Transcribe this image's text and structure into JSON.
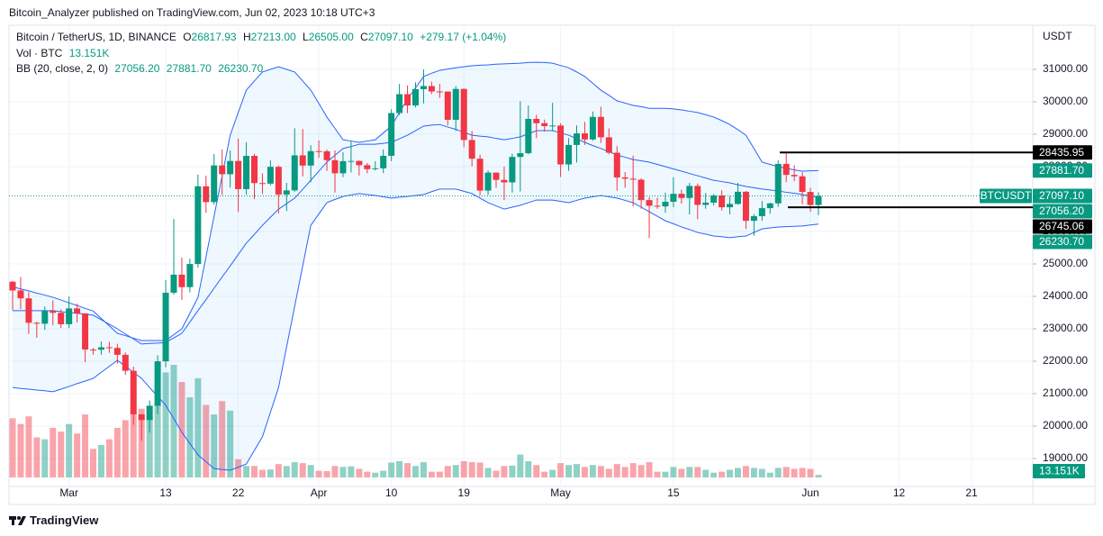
{
  "header": {
    "byline": "Bitcoin_Analyzer published on TradingView.com, Jun 02, 2023 10:18 UTC+3"
  },
  "legend": {
    "symbol": "Bitcoin / TetherUS, 1D, BINANCE",
    "ohlc": [
      {
        "key": "O",
        "value": "26817.93"
      },
      {
        "key": "H",
        "value": "27213.00"
      },
      {
        "key": "L",
        "value": "26505.00"
      },
      {
        "key": "C",
        "value": "27097.10"
      }
    ],
    "change": "+279.17 (+1.04%)",
    "volume": {
      "label": "Vol · BTC",
      "value": "13.151K"
    },
    "bb": {
      "label": "BB (20, close, 2, 0)",
      "values": [
        "27056.20",
        "27881.70",
        "26230.70"
      ]
    }
  },
  "branding": "TradingView",
  "chart_data": {
    "type": "candlestick",
    "price_unit": "USDT",
    "up_color": "#089981",
    "down_color": "#f23645",
    "volume_up_color": "rgba(8,153,129,0.45)",
    "volume_down_color": "rgba(242,54,69,0.45)",
    "grid": true,
    "ylim": [
      18139,
      32361
    ],
    "yticks": [
      {
        "value": 19000,
        "label": "19000.00"
      },
      {
        "value": 20000,
        "label": "20000.00"
      },
      {
        "value": 21000,
        "label": "21000.00"
      },
      {
        "value": 22000,
        "label": "22000.00"
      },
      {
        "value": 23000,
        "label": "23000.00"
      },
      {
        "value": 24000,
        "label": "24000.00"
      },
      {
        "value": 25000,
        "label": "25000.00"
      },
      {
        "value": 26000,
        "label": "26000.00"
      },
      {
        "value": 27000,
        "label": "27000.00"
      },
      {
        "value": 28000,
        "label": "28000.00"
      },
      {
        "value": 29000,
        "label": "29000.00"
      },
      {
        "value": 30000,
        "label": "30000.00"
      },
      {
        "value": 31000,
        "label": "31000.00"
      }
    ],
    "xticks": [
      {
        "value": "03-01",
        "label": "Mar"
      },
      {
        "value": "03-13",
        "label": "13"
      },
      {
        "value": "03-22",
        "label": "22"
      },
      {
        "value": "04-01",
        "label": "Apr"
      },
      {
        "value": "04-10",
        "label": "10"
      },
      {
        "value": "04-19",
        "label": "19"
      },
      {
        "value": "05-01",
        "label": "May"
      },
      {
        "value": "05-15",
        "label": "15"
      },
      {
        "value": "06-01",
        "label": "Jun"
      },
      {
        "value": "06-12",
        "label": "12"
      },
      {
        "value": "06-21",
        "label": "21"
      }
    ],
    "x": [
      "02-22",
      "02-23",
      "02-24",
      "02-25",
      "02-26",
      "02-27",
      "02-28",
      "03-01",
      "03-02",
      "03-03",
      "03-04",
      "03-05",
      "03-06",
      "03-07",
      "03-08",
      "03-09",
      "03-10",
      "03-11",
      "03-12",
      "03-13",
      "03-14",
      "03-15",
      "03-16",
      "03-17",
      "03-18",
      "03-19",
      "03-20",
      "03-21",
      "03-22",
      "03-23",
      "03-24",
      "03-25",
      "03-26",
      "03-27",
      "03-28",
      "03-29",
      "03-30",
      "03-31",
      "04-01",
      "04-02",
      "04-03",
      "04-04",
      "04-05",
      "04-06",
      "04-07",
      "04-08",
      "04-09",
      "04-10",
      "04-11",
      "04-12",
      "04-13",
      "04-14",
      "04-15",
      "04-16",
      "04-17",
      "04-18",
      "04-19",
      "04-20",
      "04-21",
      "04-22",
      "04-23",
      "04-24",
      "04-25",
      "04-26",
      "04-27",
      "04-28",
      "04-29",
      "04-30",
      "05-01",
      "05-02",
      "05-03",
      "05-04",
      "05-05",
      "05-06",
      "05-07",
      "05-08",
      "05-09",
      "05-10",
      "05-11",
      "05-12",
      "05-13",
      "05-14",
      "05-15",
      "05-16",
      "05-17",
      "05-18",
      "05-19",
      "05-20",
      "05-21",
      "05-22",
      "05-23",
      "05-24",
      "05-25",
      "05-26",
      "05-27",
      "05-28",
      "05-29",
      "05-30",
      "05-31",
      "06-01",
      "06-02"
    ],
    "open": [
      24452,
      24182,
      23940,
      23185,
      23157,
      23554,
      23493,
      23142,
      23629,
      23476,
      22362,
      22354,
      22430,
      22410,
      22198,
      21705,
      20362,
      20187,
      20628,
      21998,
      24113,
      24670,
      24285,
      24998,
      27395,
      26907,
      28038,
      27767,
      28175,
      27307,
      28333,
      27493,
      27477,
      27994,
      27140,
      27268,
      28348,
      28034,
      28479,
      28473,
      28200,
      27795,
      28169,
      28176,
      28045,
      27923,
      27948,
      28334,
      29653,
      30235,
      29887,
      30390,
      30485,
      30318,
      30315,
      29445,
      30397,
      28822,
      28245,
      27262,
      27816,
      27591,
      27515,
      28300,
      28415,
      29473,
      29340,
      29248,
      29268,
      28068,
      28669,
      29026,
      28839,
      29535,
      28905,
      28430,
      27668,
      27629,
      27599,
      26969,
      26795,
      26775,
      26917,
      27163,
      27034,
      27405,
      26822,
      26890,
      27112,
      26748,
      26850,
      27226,
      26330,
      26474,
      26720,
      26868,
      28085,
      27746,
      27702,
      27220,
      26817.93
    ],
    "high": [
      24476,
      24599,
      24132,
      23219,
      23689,
      23880,
      23600,
      23999,
      23775,
      23479,
      22410,
      22611,
      22603,
      22538,
      22270,
      21834,
      20367,
      20792,
      22185,
      24500,
      26386,
      25196,
      25167,
      27756,
      27724,
      28390,
      28528,
      28500,
      28868,
      28754,
      28399,
      27791,
      28194,
      28037,
      27500,
      29184,
      29159,
      28660,
      28810,
      28529,
      28500,
      28444,
      28776,
      28190,
      28111,
      28170,
      28530,
      29770,
      30550,
      30500,
      30600,
      31000,
      30620,
      30550,
      30320,
      30485,
      30410,
      29100,
      28370,
      27882,
      27820,
      28000,
      28400,
      30020,
      29890,
      29600,
      29450,
      29968,
      29338,
      28880,
      29270,
      29380,
      29700,
      29850,
      29180,
      28630,
      27830,
      28340,
      27640,
      27060,
      27040,
      27200,
      27670,
      27290,
      27500,
      27480,
      27190,
      27160,
      27270,
      27090,
      27500,
      27250,
      26540,
      26940,
      26890,
      28200,
      28447,
      28045,
      27835,
      27350,
      27213
    ],
    "low": [
      23574,
      23608,
      22841,
      22722,
      22965,
      23106,
      23020,
      23021,
      23195,
      21971,
      22200,
      22200,
      22258,
      21927,
      21580,
      20043,
      19549,
      19800,
      20367,
      21813,
      24050,
      23896,
      24123,
      24890,
      26578,
      26827,
      27124,
      27352,
      26601,
      27136,
      27000,
      27162,
      27426,
      26555,
      26631,
      27227,
      27701,
      27520,
      28270,
      27871,
      27200,
      27676,
      27822,
      27728,
      27795,
      27884,
      27800,
      28170,
      29590,
      29650,
      29830,
      29950,
      30240,
      30120,
      29270,
      29100,
      28600,
      28010,
      27125,
      27130,
      27350,
      26970,
      27200,
      27235,
      28380,
      28880,
      29080,
      29090,
      27680,
      27870,
      28130,
      28670,
      28800,
      28730,
      28380,
      27260,
      27350,
      26780,
      26700,
      25800,
      26700,
      26580,
      26750,
      26860,
      26530,
      26380,
      26700,
      26800,
      26650,
      26530,
      26830,
      26080,
      25870,
      26330,
      26550,
      26760,
      27520,
      27550,
      26840,
      26604,
      26505
    ],
    "close": [
      24182,
      23940,
      23185,
      23157,
      23554,
      23493,
      23142,
      23629,
      23476,
      22362,
      22354,
      22430,
      22410,
      22198,
      21705,
      20362,
      20187,
      20628,
      21998,
      24113,
      24670,
      24285,
      24998,
      27395,
      26907,
      28038,
      27767,
      28175,
      27307,
      28333,
      27493,
      27477,
      27994,
      27140,
      27268,
      28348,
      28034,
      28479,
      28473,
      28200,
      27795,
      28169,
      28176,
      28045,
      27923,
      27948,
      28334,
      29653,
      30235,
      29887,
      30390,
      30485,
      30318,
      30315,
      29445,
      30397,
      28822,
      28245,
      27262,
      27816,
      27591,
      27515,
      28300,
      28415,
      29473,
      29340,
      29248,
      29268,
      28068,
      28669,
      29026,
      28839,
      29535,
      28905,
      28430,
      27668,
      27629,
      27599,
      26969,
      26795,
      26775,
      26917,
      27163,
      27034,
      27405,
      26822,
      26890,
      27112,
      26748,
      26850,
      27226,
      26330,
      26474,
      26720,
      26868,
      28085,
      27746,
      27702,
      27220,
      26817.93,
      27097.1
    ],
    "volume": [
      310000,
      280000,
      320000,
      210000,
      200000,
      260000,
      240000,
      280000,
      230000,
      330000,
      150000,
      170000,
      200000,
      260000,
      300000,
      330000,
      360000,
      320000,
      380000,
      550000,
      590000,
      500000,
      420000,
      520000,
      380000,
      330000,
      400000,
      350000,
      95000,
      60000,
      60000,
      40000,
      42000,
      70000,
      60000,
      80000,
      75000,
      65000,
      35000,
      33000,
      60000,
      55000,
      58000,
      45000,
      30000,
      25000,
      35000,
      78000,
      85000,
      75000,
      60000,
      80000,
      30000,
      30000,
      60000,
      65000,
      85000,
      80000,
      78000,
      50000,
      35000,
      60000,
      62000,
      120000,
      85000,
      65000,
      30000,
      40000,
      75000,
      65000,
      70000,
      55000,
      65000,
      60000,
      45000,
      70000,
      55000,
      75000,
      65000,
      80000,
      30000,
      30000,
      55000,
      45000,
      55000,
      55000,
      40000,
      25000,
      30000,
      40000,
      50000,
      60000,
      50000,
      45000,
      25000,
      50000,
      55000,
      45000,
      50000,
      45000,
      13151
    ],
    "bollinger": {
      "color": "#2962ff",
      "fill": "rgba(33,150,243,0.07)",
      "upper": [
        24300,
        24230,
        24170,
        24100,
        24040,
        23970,
        23890,
        23800,
        23720,
        23630,
        23550,
        23320,
        23090,
        22860,
        22790,
        22710,
        22640,
        22640,
        22640,
        22640,
        22820,
        23000,
        23480,
        23970,
        25220,
        26470,
        27720,
        28970,
        29670,
        30360,
        30640,
        30920,
        31000,
        31080,
        31000,
        30920,
        30640,
        30360,
        29950,
        29530,
        29180,
        28830,
        28790,
        28750,
        28790,
        28830,
        29040,
        29250,
        29670,
        30080,
        30430,
        30780,
        30880,
        30970,
        31010,
        31050,
        31080,
        31110,
        31130,
        31140,
        31160,
        31170,
        31180,
        31190,
        31210,
        31220,
        31210,
        31190,
        31120,
        31050,
        30920,
        30780,
        30570,
        30360,
        30200,
        30030,
        29960,
        29890,
        29850,
        29800,
        29800,
        29800,
        29780,
        29750,
        29710,
        29670,
        29600,
        29530,
        29420,
        29300,
        29140,
        28970,
        28560,
        28140,
        28070,
        28000,
        27950,
        27900,
        27860,
        27870,
        27881.7
      ],
      "middle": [
        23560,
        23560,
        23560,
        23560,
        23560,
        23560,
        23530,
        23500,
        23480,
        23450,
        23420,
        23280,
        23140,
        23000,
        22840,
        22690,
        22530,
        22550,
        22560,
        22580,
        22720,
        22860,
        23210,
        23560,
        23900,
        24250,
        24600,
        24940,
        25290,
        25640,
        25910,
        26190,
        26440,
        26690,
        26860,
        27030,
        27300,
        27580,
        27860,
        28140,
        28350,
        28560,
        28620,
        28690,
        28690,
        28690,
        28720,
        28750,
        28860,
        28970,
        29110,
        29250,
        29280,
        29300,
        29220,
        29150,
        29060,
        28970,
        28940,
        28920,
        28870,
        28830,
        28870,
        28920,
        29010,
        29110,
        29110,
        29110,
        29040,
        28970,
        28860,
        28750,
        28650,
        28560,
        28460,
        28360,
        28290,
        28220,
        28180,
        28140,
        28070,
        28000,
        27930,
        27860,
        27790,
        27720,
        27650,
        27580,
        27540,
        27500,
        27440,
        27390,
        27350,
        27310,
        27280,
        27250,
        27210,
        27180,
        27140,
        27100,
        27056.2
      ],
      "lower": [
        21190,
        21160,
        21140,
        21110,
        21090,
        21060,
        21140,
        21220,
        21310,
        21390,
        21470,
        21660,
        21840,
        22030,
        21840,
        21660,
        21470,
        21190,
        20920,
        20640,
        20230,
        19810,
        19460,
        19110,
        18900,
        18690,
        18660,
        18640,
        18730,
        18830,
        19250,
        19670,
        20430,
        21190,
        22440,
        23690,
        24940,
        26190,
        26540,
        26890,
        26990,
        27080,
        27130,
        27170,
        27140,
        27110,
        27070,
        27030,
        27060,
        27080,
        27110,
        27140,
        27230,
        27310,
        27310,
        27310,
        27240,
        27170,
        27030,
        26890,
        26790,
        26690,
        26750,
        26810,
        26890,
        26970,
        26970,
        26970,
        26930,
        26890,
        26960,
        27030,
        27070,
        27110,
        27070,
        27030,
        26960,
        26890,
        26750,
        26610,
        26470,
        26330,
        26240,
        26140,
        26060,
        25970,
        25920,
        25860,
        25840,
        25810,
        25840,
        25860,
        25970,
        26080,
        26110,
        26140,
        26150,
        26160,
        26170,
        26200,
        26230.7
      ]
    },
    "horizontal_lines": [
      {
        "value": 28435.95,
        "color": "#000000"
      },
      {
        "value": 26745.06,
        "color": "#000000"
      }
    ],
    "last_price": {
      "name": "BTCUSDT",
      "value": 27097.1,
      "label": "27097.10",
      "color": "#089981"
    },
    "price_labels": [
      {
        "value": 28435.95,
        "label": "28435.95",
        "color": "#000000"
      },
      {
        "value": 27881.7,
        "label": "27881.70",
        "color": "#089981"
      },
      {
        "value": 27056.2,
        "label": "27056.20",
        "color": "#089981"
      },
      {
        "value": 26745.06,
        "label": "26745.06",
        "color": "#000000"
      },
      {
        "value": 26230.7,
        "label": "26230.70",
        "color": "#089981"
      }
    ],
    "volume_label": {
      "value": 13151,
      "label": "13.151K",
      "color": "#089981"
    }
  }
}
